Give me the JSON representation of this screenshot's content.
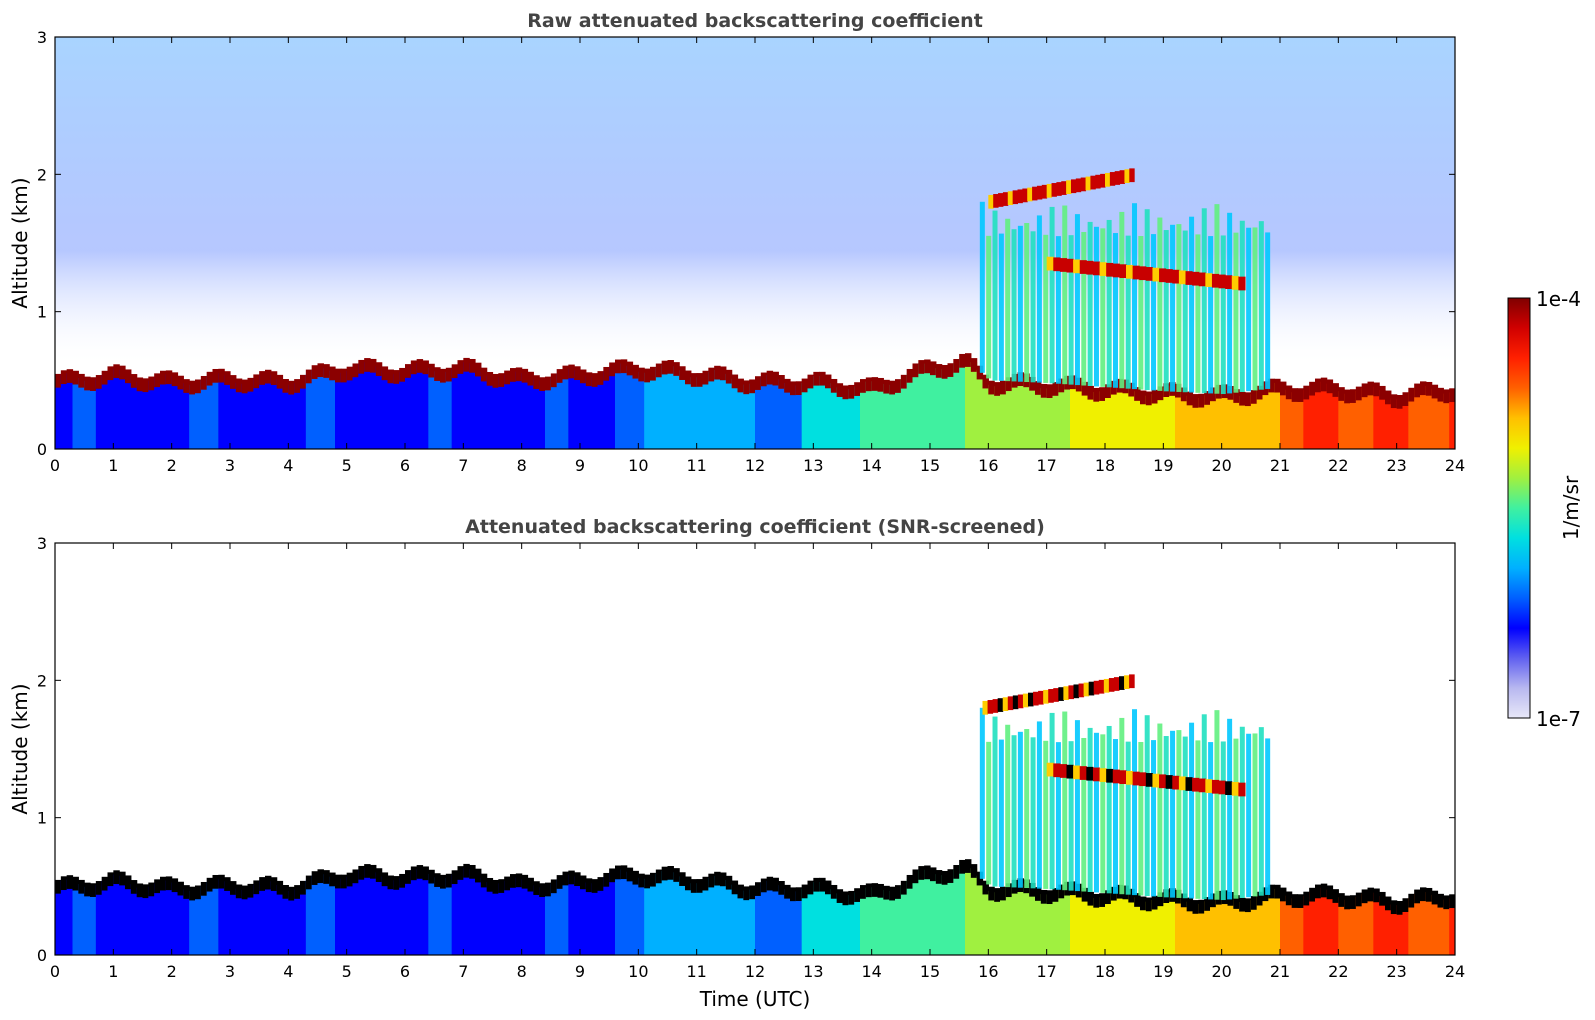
{
  "figure": {
    "colorbar": {
      "label": "1/m/sr",
      "tick_top": "1e-4",
      "tick_bottom": "1e-7",
      "stops": [
        "#e8e8f8",
        "#b8b8f0",
        "#6060f0",
        "#0000ff",
        "#0060ff",
        "#00b0ff",
        "#00e0e0",
        "#40f0a0",
        "#a0f040",
        "#f0f000",
        "#ffc000",
        "#ff6000",
        "#ff2000",
        "#d00000",
        "#800000"
      ]
    }
  },
  "chart_data": [
    {
      "type": "heatmap",
      "title": "Raw attenuated backscattering coefficient",
      "xlabel": "",
      "ylabel": "Altitude (km)",
      "xlim": [
        0,
        24
      ],
      "ylim": [
        0,
        3
      ],
      "xticks": [
        "0",
        "1",
        "2",
        "3",
        "4",
        "5",
        "6",
        "7",
        "8",
        "9",
        "10",
        "11",
        "12",
        "13",
        "14",
        "15",
        "16",
        "17",
        "18",
        "19",
        "20",
        "21",
        "22",
        "23",
        "24"
      ],
      "yticks": [
        "0",
        "1",
        "2",
        "3"
      ],
      "variable": "attenuated backscatter (1/m/sr)",
      "boundary_layer_top_km": {
        "x": [
          0,
          1,
          2,
          3,
          4,
          5,
          6,
          7,
          8,
          9,
          10,
          11,
          12,
          13,
          14,
          15,
          15.6,
          16,
          17,
          18,
          19,
          20,
          21,
          22,
          23,
          24
        ],
        "y": [
          0.5,
          0.55,
          0.5,
          0.52,
          0.5,
          0.6,
          0.58,
          0.6,
          0.52,
          0.55,
          0.6,
          0.56,
          0.5,
          0.5,
          0.45,
          0.6,
          0.65,
          0.5,
          0.48,
          0.45,
          0.42,
          0.4,
          0.45,
          0.45,
          0.4,
          0.45
        ]
      },
      "cloud_layers": [
        {
          "name": "upper cloud",
          "x_start": 16.0,
          "x_end": 18.5,
          "alt_start_km": 1.8,
          "alt_end_km": 2.0
        },
        {
          "name": "mid cloud",
          "x_start": 17.0,
          "x_end": 20.4,
          "alt_start_km": 1.35,
          "alt_end_km": 1.2
        }
      ],
      "precipitation_streaks": {
        "x_start": 15.8,
        "x_end": 20.8,
        "top_km": 1.8
      }
    },
    {
      "type": "heatmap",
      "title": "Attenuated backscattering coefficient (SNR-screened)",
      "xlabel": "Time (UTC)",
      "ylabel": "Altitude (km)",
      "xlim": [
        0,
        24
      ],
      "ylim": [
        0,
        3
      ],
      "xticks": [
        "0",
        "1",
        "2",
        "3",
        "4",
        "5",
        "6",
        "7",
        "8",
        "9",
        "10",
        "11",
        "12",
        "13",
        "14",
        "15",
        "16",
        "17",
        "18",
        "19",
        "20",
        "21",
        "22",
        "23",
        "24"
      ],
      "yticks": [
        "0",
        "1",
        "2",
        "3"
      ],
      "variable": "attenuated backscatter (1/m/sr), low-SNR removed",
      "boundary_layer_top_km": {
        "x": [
          0,
          1,
          2,
          3,
          4,
          5,
          6,
          7,
          8,
          9,
          10,
          11,
          12,
          13,
          14,
          15,
          15.6,
          16,
          17,
          18,
          19,
          20,
          21,
          22,
          23,
          24
        ],
        "y": [
          0.5,
          0.55,
          0.5,
          0.52,
          0.5,
          0.6,
          0.58,
          0.6,
          0.52,
          0.55,
          0.6,
          0.56,
          0.5,
          0.5,
          0.45,
          0.6,
          0.65,
          0.5,
          0.48,
          0.45,
          0.42,
          0.4,
          0.45,
          0.45,
          0.4,
          0.45
        ]
      },
      "cloud_layers": [
        {
          "name": "upper cloud",
          "x_start": 15.9,
          "x_end": 18.5,
          "alt_start_km": 1.8,
          "alt_end_km": 2.0
        },
        {
          "name": "mid cloud",
          "x_start": 17.0,
          "x_end": 20.4,
          "alt_start_km": 1.35,
          "alt_end_km": 1.2
        }
      ],
      "precipitation_streaks": {
        "x_start": 15.8,
        "x_end": 20.8,
        "top_km": 1.8
      }
    }
  ]
}
